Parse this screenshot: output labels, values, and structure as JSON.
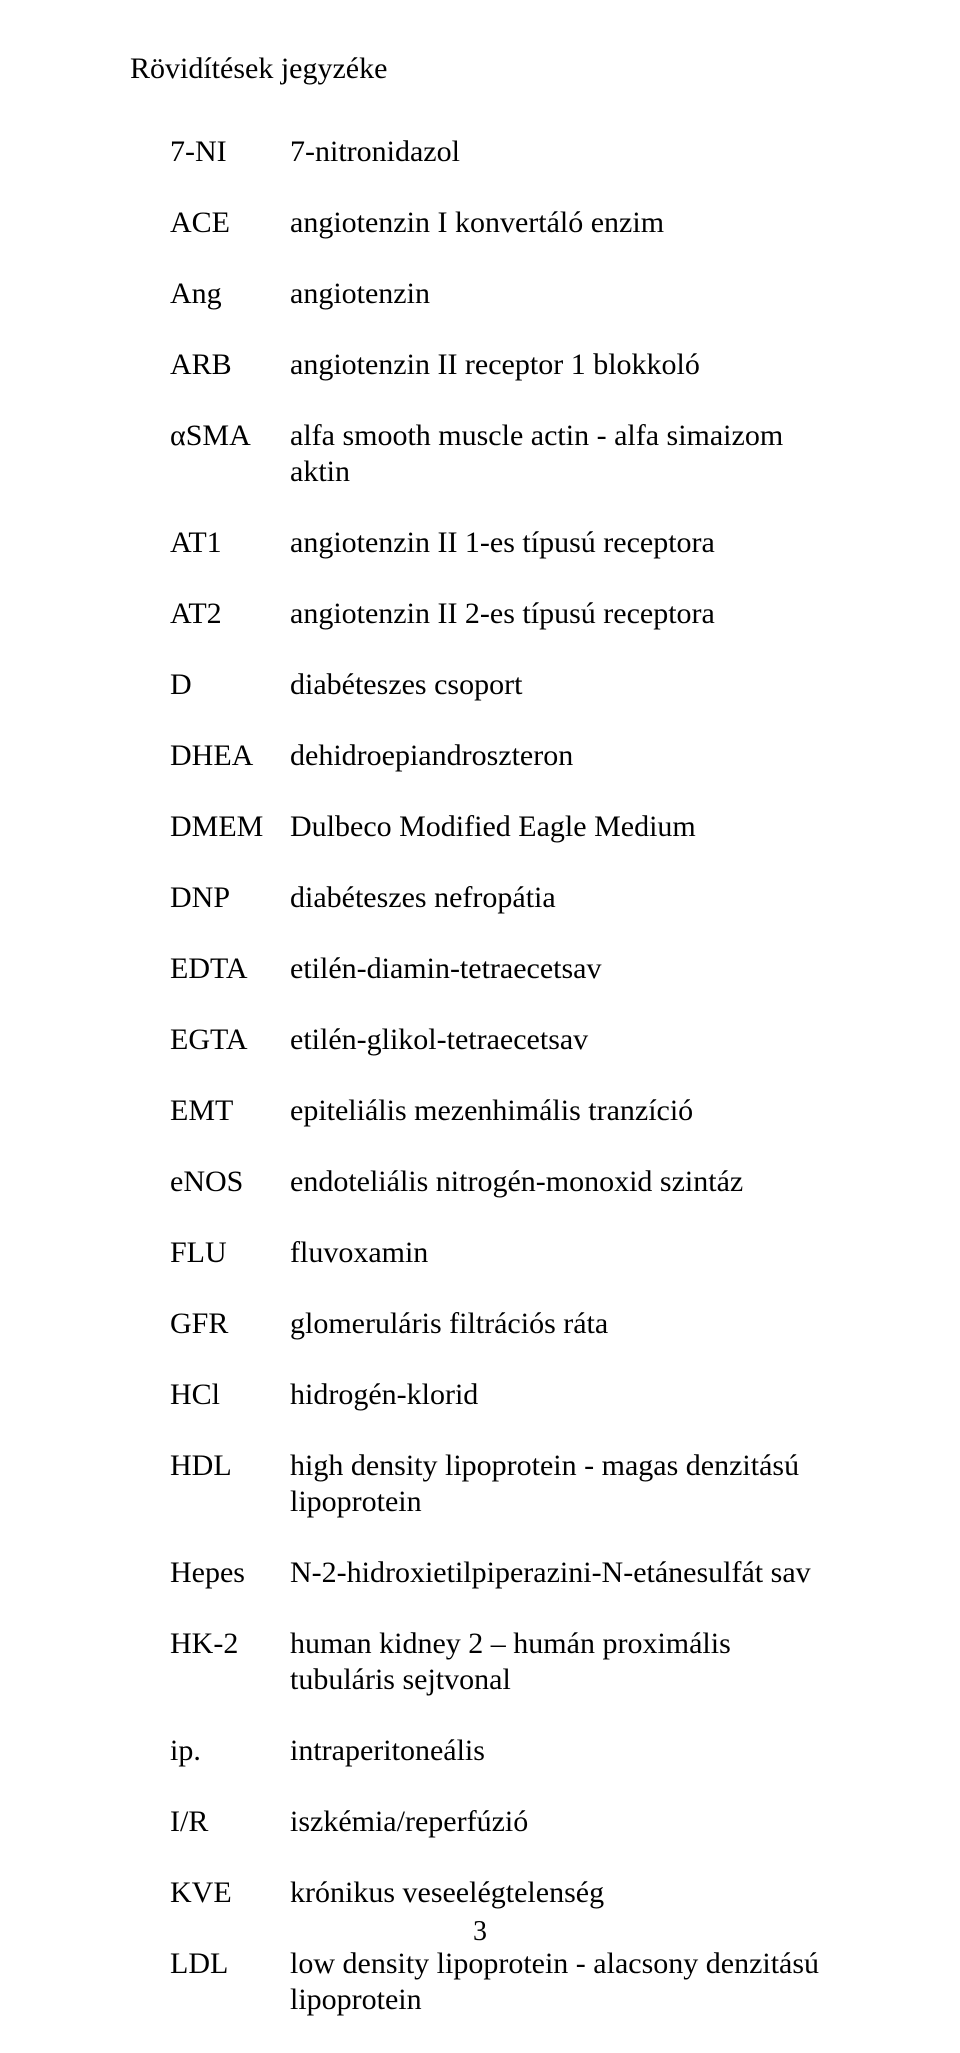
{
  "title": "Rövidítések jegyzéke",
  "page_number": "3",
  "entries": [
    {
      "term": "7-NI",
      "def": "7-nitronidazol"
    },
    {
      "term": "ACE",
      "def": "angiotenzin I konvertáló enzim"
    },
    {
      "term": "Ang",
      "def": "angiotenzin"
    },
    {
      "term": "ARB",
      "def": "angiotenzin II receptor 1 blokkoló"
    },
    {
      "term": "αSMA",
      "def": "alfa smooth muscle actin - alfa simaizom aktin"
    },
    {
      "term": "AT1",
      "def": "angiotenzin II 1-es típusú receptora"
    },
    {
      "term": "AT2",
      "def": "angiotenzin II 2-es típusú receptora"
    },
    {
      "term": "D",
      "def": "diabéteszes csoport"
    },
    {
      "term": "DHEA",
      "def": "dehidroepiandroszteron"
    },
    {
      "term": "DMEM",
      "def": "Dulbeco Modified Eagle Medium"
    },
    {
      "term": "DNP",
      "def": "diabéteszes nefropátia"
    },
    {
      "term": "EDTA",
      "def": "etilén-diamin-tetraecetsav"
    },
    {
      "term": "EGTA",
      "def": "etilén-glikol-tetraecetsav"
    },
    {
      "term": "EMT",
      "def": "epiteliális mezenhimális tranzíció"
    },
    {
      "term": "eNOS",
      "def": "endoteliális nitrogén-monoxid szintáz"
    },
    {
      "term": "FLU",
      "def": "fluvoxamin"
    },
    {
      "term": "GFR",
      "def": "glomeruláris filtrációs ráta"
    },
    {
      "term": "HCl",
      "def": "hidrogén-klorid"
    },
    {
      "term": "HDL",
      "def": "high density lipoprotein - magas denzitású lipoprotein"
    },
    {
      "term": "Hepes",
      "def": "N-2-hidroxietilpiperazini-N-etánesulfát sav"
    },
    {
      "term": "HK-2",
      "def": "human kidney 2 – humán proximális tubuláris sejtvonal"
    },
    {
      "term": "ip.",
      "def": "intraperitoneális"
    },
    {
      "term": "I/R",
      "def": "iszkémia/reperfúzió"
    },
    {
      "term": "KVE",
      "def": "krónikus veseelégtelenség"
    },
    {
      "term": "LDL",
      "def": "low density lipoprotein - alacsony denzitású lipoprotein"
    }
  ]
}
